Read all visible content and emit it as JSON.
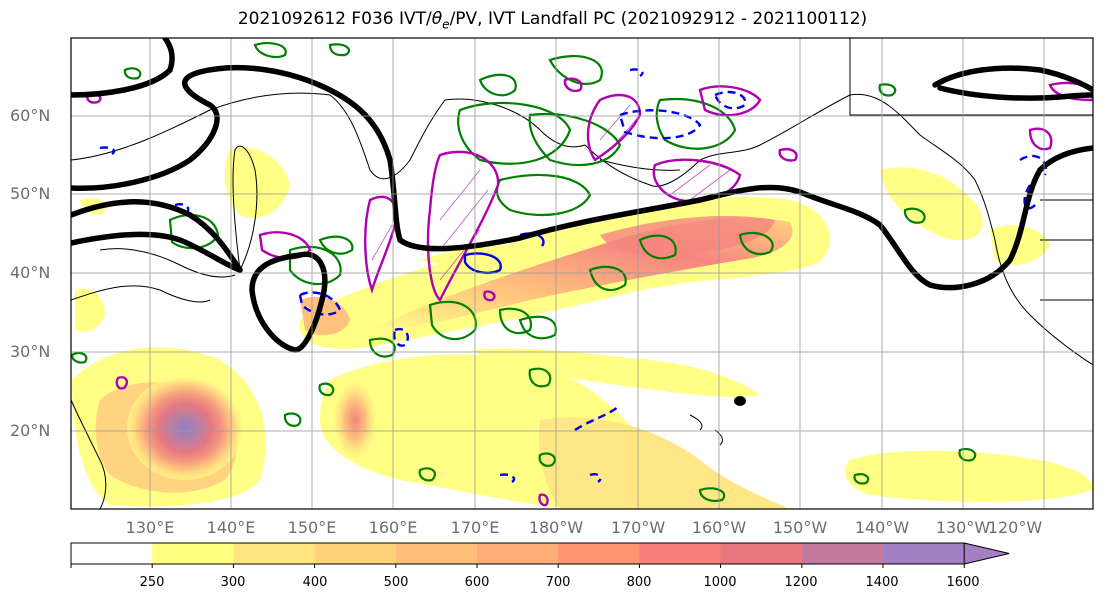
{
  "title_main": "2021092612 F036 IVT/",
  "title_theta": "θ",
  "title_sub": "e",
  "title_rest": "/PV, IVT Landfall PC (2021092912 - 2021100112)",
  "lat_labels": [
    "60°N",
    "50°N",
    "40°N",
    "30°N",
    "20°N"
  ],
  "lon_labels": [
    "130°E",
    "140°E",
    "150°E",
    "160°E",
    "170°E",
    "180°W",
    "170°W",
    "160°W",
    "150°W",
    "140°W",
    "130°W",
    "120°W"
  ],
  "colorbar": {
    "levels": [
      "250",
      "300",
      "400",
      "500",
      "600",
      "700",
      "800",
      "1000",
      "1200",
      "1400",
      "1600"
    ],
    "colors": [
      "#ffffff",
      "#ffff80",
      "#ffe680",
      "#ffd27a",
      "#ffbf78",
      "#ffad78",
      "#ff9473",
      "#f5807a",
      "#e8777f",
      "#c47a9e",
      "#a57fc4"
    ]
  },
  "legend_colors": {
    "ivt_fill_low": "#ffff80",
    "ivt_fill_high": "#ff8080",
    "pc_contour": "#000000",
    "theta_contour": "#008000",
    "pv_positive": "#b000b0",
    "pv_negative": "#0000ee"
  }
}
